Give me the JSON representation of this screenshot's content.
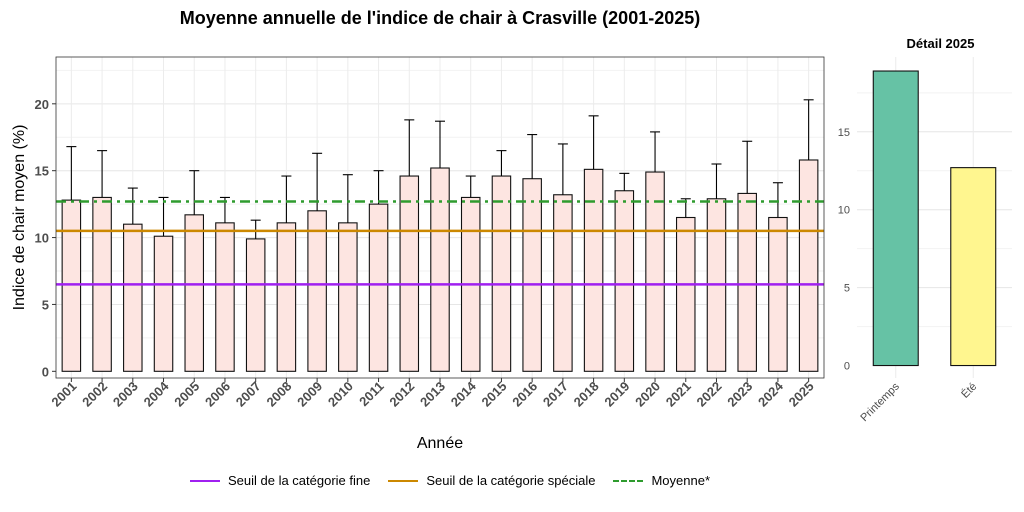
{
  "chart_data": [
    {
      "type": "bar",
      "title": "Moyenne annuelle de l'indice de chair à Crasville (2001-2025)",
      "xlabel": "Année",
      "ylabel": "Indice de chair moyen (%)",
      "ylim": [
        -0.5,
        23.5
      ],
      "yticks": [
        0,
        5,
        10,
        15,
        20
      ],
      "grid": true,
      "categories": [
        "2001",
        "2002",
        "2003",
        "2004",
        "2005",
        "2006",
        "2007",
        "2008",
        "2009",
        "2010",
        "2011",
        "2012",
        "2013",
        "2014",
        "2015",
        "2016",
        "2017",
        "2018",
        "2019",
        "2020",
        "2021",
        "2022",
        "2023",
        "2024",
        "2025"
      ],
      "values": [
        12.8,
        13.0,
        11.0,
        10.1,
        11.7,
        11.1,
        9.9,
        11.1,
        12.0,
        11.1,
        12.5,
        14.6,
        15.2,
        13.0,
        14.6,
        14.4,
        13.2,
        15.1,
        13.5,
        14.9,
        11.5,
        12.9,
        13.3,
        11.5,
        15.8
      ],
      "error_upper": [
        16.8,
        16.5,
        13.7,
        13.0,
        15.0,
        13.0,
        11.3,
        14.6,
        16.3,
        14.7,
        15.0,
        18.8,
        18.7,
        14.6,
        16.5,
        17.7,
        17.0,
        19.1,
        14.8,
        17.9,
        12.9,
        15.5,
        17.2,
        14.1,
        20.3
      ],
      "bar_color": "#FDE5E1",
      "reference_lines": [
        {
          "name": "Seuil de la catégorie fine",
          "value": 6.5,
          "color": "#A020F0",
          "style": "solid"
        },
        {
          "name": "Seuil de la catégorie spéciale",
          "value": 10.5,
          "color": "#CC8800",
          "style": "solid"
        },
        {
          "name": "Moyenne*",
          "value": 12.7,
          "color": "#2E9B2E",
          "style": "dashdot"
        }
      ],
      "legend_position": "bottom"
    },
    {
      "type": "bar",
      "title": "Détail 2025",
      "xlabel": "",
      "ylabel": "",
      "ylim": [
        -0.8,
        19.8
      ],
      "yticks": [
        0,
        5,
        10,
        15
      ],
      "grid": true,
      "categories": [
        "Printemps",
        "Été"
      ],
      "values": [
        18.9,
        12.7
      ],
      "colors": [
        "#66C2A5",
        "#FFF68F"
      ]
    }
  ],
  "legend": {
    "items": [
      {
        "label": "Seuil de la catégorie fine",
        "color": "#A020F0",
        "style": "solid"
      },
      {
        "label": "Seuil de la catégorie spéciale",
        "color": "#CC8800",
        "style": "solid"
      },
      {
        "label": "Moyenne*",
        "color": "#2E9B2E",
        "style": "dashed"
      }
    ]
  }
}
